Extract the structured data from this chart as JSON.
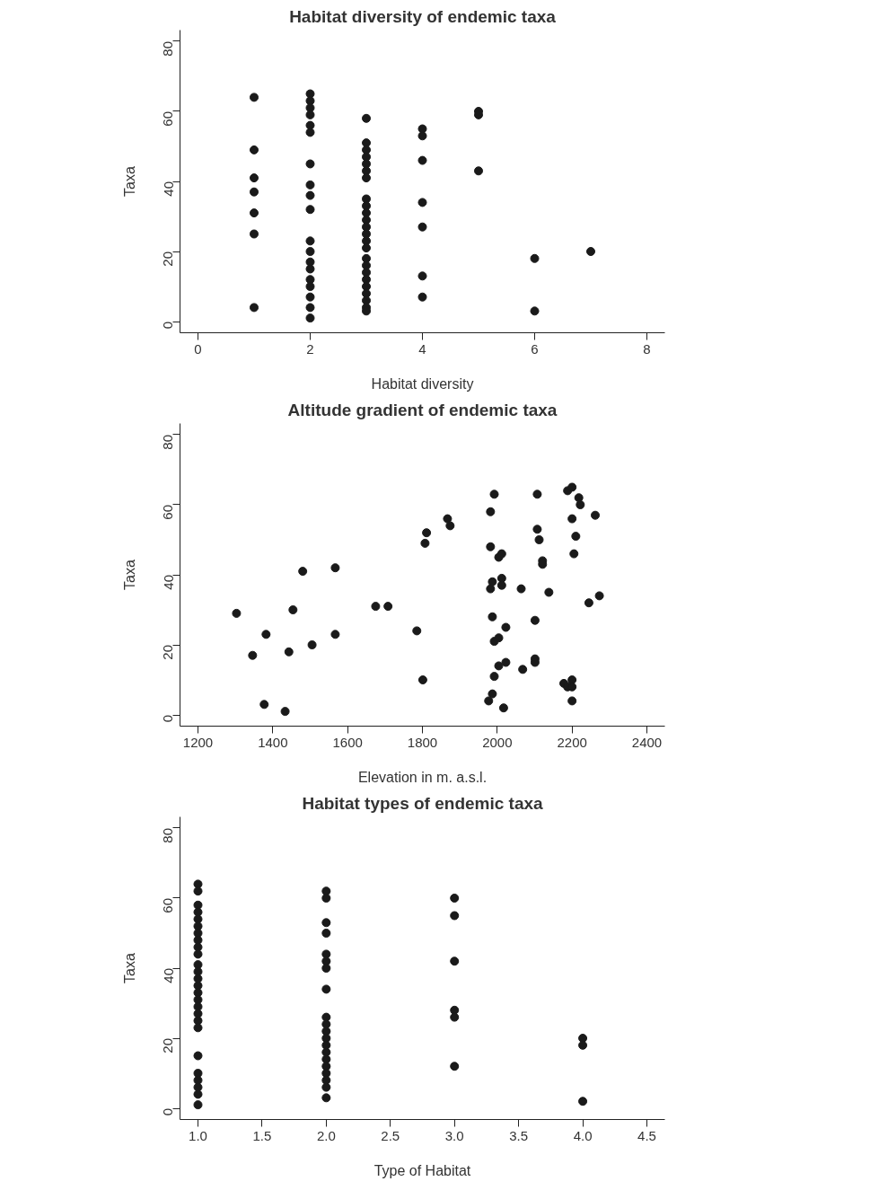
{
  "chart_data": [
    {
      "type": "scatter",
      "title": "Habitat diversity of endemic taxa",
      "xlabel": "Habitat diversity",
      "ylabel": "Taxa",
      "color": "#1a1a1a",
      "marker": "circle",
      "grid": false,
      "xlim": [
        -0.32,
        8.32
      ],
      "ylim": [
        -3.2,
        83.2
      ],
      "xticks": [
        0,
        2,
        4,
        6,
        8
      ],
      "yticks": [
        0,
        20,
        40,
        60,
        80
      ],
      "x": [
        1,
        1,
        1,
        1,
        1,
        1,
        1,
        2,
        2,
        2,
        2,
        2,
        2,
        2,
        2,
        2,
        2,
        2,
        2,
        2,
        2,
        2,
        2,
        2,
        2,
        2,
        3,
        3,
        3,
        3,
        3,
        3,
        3,
        3,
        3,
        3,
        3,
        3,
        3,
        3,
        3,
        3,
        3,
        3,
        3,
        3,
        3,
        3,
        3,
        3,
        4,
        4,
        4,
        4,
        4,
        4,
        4,
        5,
        5,
        5,
        6,
        6,
        7
      ],
      "values": [
        64,
        49,
        41,
        37,
        31,
        25,
        4,
        65,
        63,
        61,
        59,
        56,
        54,
        45,
        39,
        36,
        32,
        23,
        20,
        17,
        15,
        12,
        10,
        7,
        4,
        1,
        58,
        51,
        49,
        47,
        45,
        43,
        41,
        35,
        33,
        31,
        29,
        27,
        25,
        23,
        21,
        18,
        16,
        14,
        12,
        10,
        8,
        6,
        4,
        3,
        55,
        53,
        46,
        34,
        27,
        13,
        7,
        60,
        59,
        43,
        18,
        3,
        20
      ]
    },
    {
      "type": "scatter",
      "title": "Altitude gradient of endemic taxa",
      "xlabel": "Elevation in m. a.s.l.",
      "ylabel": "Taxa",
      "color": "#1a1a1a",
      "marker": "circle",
      "grid": false,
      "xlim": [
        1152,
        2448
      ],
      "ylim": [
        -3.2,
        83.2
      ],
      "xticks": [
        1200,
        1400,
        1600,
        1800,
        2000,
        2200,
        2400
      ],
      "yticks": [
        0,
        20,
        40,
        60,
        80
      ],
      "x": [
        1303,
        1346,
        1382,
        1377,
        1433,
        1443,
        1454,
        1480,
        1505,
        1567,
        1567,
        1675,
        1708,
        1785,
        1801,
        1807,
        1811,
        1867,
        1874,
        1992,
        1982,
        1982,
        2004,
        2012,
        1982,
        1987,
        2012,
        2012,
        1987,
        2023,
        1992,
        2004,
        1992,
        2004,
        2023,
        1987,
        1977,
        2017,
        2064,
        2068,
        2107,
        2107,
        2112,
        2121,
        2121,
        2101,
        2101,
        2101,
        2138,
        2188,
        2200,
        2200,
        2210,
        2205,
        2218,
        2222,
        2178,
        2188,
        2200,
        2200,
        2200,
        2262,
        2245,
        2273
      ],
      "values": [
        29,
        17,
        23,
        3,
        1,
        18,
        30,
        41,
        20,
        23,
        42,
        31,
        31,
        24,
        10,
        49,
        52,
        56,
        54,
        63,
        58,
        48,
        45,
        46,
        36,
        38,
        39,
        37,
        28,
        25,
        21,
        22,
        11,
        14,
        15,
        6,
        4,
        2,
        36,
        13,
        63,
        53,
        50,
        44,
        43,
        27,
        16,
        15,
        35,
        64,
        65,
        56,
        51,
        46,
        62,
        60,
        9,
        8,
        10,
        4,
        8,
        57,
        32,
        34
      ]
    },
    {
      "type": "scatter",
      "title": "Habitat types of endemic taxa",
      "xlabel": "Type of Habitat",
      "ylabel": "Taxa",
      "color": "#1a1a1a",
      "marker": "circle",
      "grid": false,
      "xlim": [
        0.86,
        4.64
      ],
      "ylim": [
        -3.2,
        83.2
      ],
      "xticks": [
        {
          "value": 1,
          "label": "1.0"
        },
        {
          "value": 1.5,
          "label": "1.5"
        },
        {
          "value": 2,
          "label": "2.0"
        },
        {
          "value": 2.5,
          "label": "2.5"
        },
        {
          "value": 3,
          "label": "3.0"
        },
        {
          "value": 3.5,
          "label": "3.5"
        },
        {
          "value": 4,
          "label": "4.0"
        },
        {
          "value": 4.5,
          "label": "4.5"
        }
      ],
      "yticks": [
        0,
        20,
        40,
        60,
        80
      ],
      "x": [
        1,
        1,
        1,
        1,
        1,
        1,
        1,
        1,
        1,
        1,
        1,
        1,
        1,
        1,
        1,
        1,
        1,
        1,
        1,
        1,
        1,
        1,
        1,
        1,
        1,
        1,
        2,
        2,
        2,
        2,
        2,
        2,
        2,
        2,
        2,
        2,
        2,
        2,
        2,
        2,
        2,
        2,
        2,
        2,
        2,
        2,
        3,
        3,
        3,
        3,
        3,
        3,
        4,
        4,
        4
      ],
      "values": [
        64,
        62,
        58,
        56,
        54,
        52,
        50,
        48,
        46,
        44,
        41,
        39,
        37,
        35,
        33,
        31,
        29,
        27,
        25,
        23,
        15,
        10,
        8,
        6,
        4,
        1,
        62,
        60,
        53,
        50,
        44,
        42,
        40,
        34,
        26,
        24,
        22,
        20,
        18,
        16,
        14,
        12,
        10,
        8,
        6,
        3,
        60,
        55,
        42,
        28,
        26,
        12,
        20,
        18,
        2
      ]
    }
  ]
}
